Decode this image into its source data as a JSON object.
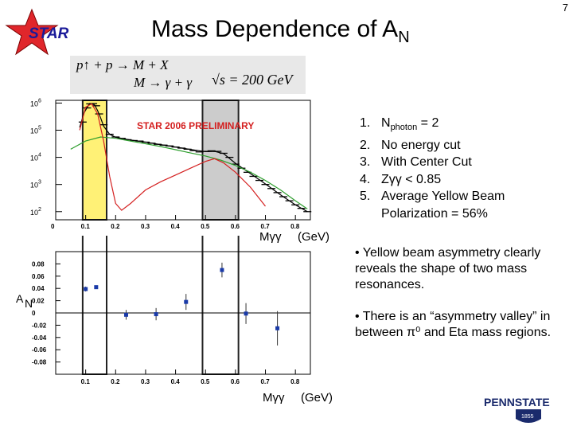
{
  "slide": {
    "number": "7",
    "logo_text": "STAR",
    "title_main": "Mass Dependence of A",
    "title_sub": "N"
  },
  "formula": {
    "line1": "p↑ + p → M + X",
    "line2": "M → γ + γ",
    "sqrt": "√s = 200 GeV"
  },
  "conditions": [
    {
      "num": "1.",
      "main": "N",
      "sub": "photon",
      "rest": " = 2"
    },
    {
      "num": "2.",
      "main": "No energy cut",
      "sub": "",
      "rest": ""
    },
    {
      "num": "3.",
      "main": "With Center Cut",
      "sub": "",
      "rest": ""
    },
    {
      "num": "4.",
      "main": "Zγγ < 0.85",
      "sub": "",
      "rest": ""
    },
    {
      "num": "5.",
      "main": "Average Yellow Beam",
      "sub": "",
      "rest": ""
    },
    {
      "num": "",
      "main": "Polarization = 56%",
      "sub": "",
      "rest": ""
    }
  ],
  "bullets": [
    "• Yellow beam asymmetry clearly reveals the shape of two mass resonances.",
    "• There is an “asymmetry valley” in between π⁰ and Eta mass regions."
  ],
  "pennstate": {
    "text": "PENNSTATE",
    "year": "1855"
  },
  "colors": {
    "yellow_band": "#fff176",
    "gray_band": "#cccccc",
    "points": "#1a3aa8",
    "fit_green": "#2e9e2e",
    "fit_red": "#d42020",
    "star_red": "#e0262b"
  },
  "chart_data": [
    {
      "type": "line",
      "annotation": "STAR 2006 PRELIMINARY",
      "xlabel": "Mγγ",
      "xlabel_unit": "(GeV)",
      "ylabel": "",
      "x_ticks": [
        "0",
        "0.1",
        "0.2",
        "0.3",
        "0.4",
        "0.5",
        "0.6",
        "0.7",
        "0.8"
      ],
      "y_ticks": [
        {
          "base": "10",
          "exp": "6",
          "v": 6
        },
        {
          "base": "10",
          "exp": "5",
          "v": 5
        },
        {
          "base": "10",
          "exp": "4",
          "v": 4
        },
        {
          "base": "10",
          "exp": "3",
          "v": 3
        },
        {
          "base": "10",
          "exp": "2",
          "v": 2
        }
      ],
      "xlim": [
        0,
        0.85
      ],
      "ylim_log10": [
        1.7,
        6.1
      ],
      "yscale": "log",
      "bands": [
        {
          "from": 0.09,
          "to": 0.17,
          "color": "yellow"
        },
        {
          "from": 0.49,
          "to": 0.61,
          "color": "gray"
        }
      ],
      "series": [
        {
          "style": "data",
          "x": [
            0.09,
            0.105,
            0.115,
            0.125,
            0.135,
            0.145,
            0.16,
            0.18,
            0.2,
            0.22,
            0.24,
            0.26,
            0.28,
            0.3,
            0.32,
            0.34,
            0.36,
            0.38,
            0.4,
            0.42,
            0.44,
            0.46,
            0.48,
            0.5,
            0.52,
            0.54,
            0.56,
            0.58,
            0.6,
            0.62,
            0.64,
            0.66,
            0.68,
            0.7,
            0.72,
            0.74,
            0.76,
            0.78,
            0.8,
            0.82,
            0.84
          ],
          "log10y": [
            5.3,
            5.82,
            5.97,
            5.98,
            5.9,
            5.6,
            5.2,
            4.85,
            4.75,
            4.7,
            4.65,
            4.62,
            4.6,
            4.56,
            4.52,
            4.48,
            4.45,
            4.42,
            4.38,
            4.34,
            4.3,
            4.25,
            4.2,
            4.22,
            4.24,
            4.22,
            4.15,
            4.0,
            3.75,
            3.6,
            3.45,
            3.3,
            3.15,
            3.0,
            2.85,
            2.7,
            2.55,
            2.4,
            2.25,
            2.12,
            2.0
          ]
        },
        {
          "style": "fit-black",
          "x": [
            0.08,
            0.095,
            0.11,
            0.12,
            0.13,
            0.14,
            0.15,
            0.16,
            0.18,
            0.2,
            0.25,
            0.3,
            0.35,
            0.4,
            0.45,
            0.5,
            0.53,
            0.56,
            0.6,
            0.65,
            0.7,
            0.75,
            0.8,
            0.84
          ],
          "log10y": [
            5.1,
            5.65,
            5.93,
            5.98,
            5.93,
            5.72,
            5.45,
            5.15,
            4.85,
            4.74,
            4.64,
            4.56,
            4.47,
            4.38,
            4.29,
            4.21,
            4.22,
            4.14,
            3.78,
            3.4,
            3.02,
            2.62,
            2.25,
            2.0
          ]
        },
        {
          "style": "fit-green",
          "x": [
            0.05,
            0.1,
            0.15,
            0.2,
            0.25,
            0.3,
            0.35,
            0.4,
            0.45,
            0.5,
            0.55,
            0.6,
            0.65,
            0.7,
            0.75,
            0.8,
            0.84
          ],
          "log10y": [
            4.3,
            4.6,
            4.75,
            4.7,
            4.6,
            4.5,
            4.4,
            4.28,
            4.16,
            4.05,
            3.9,
            3.7,
            3.45,
            3.15,
            2.8,
            2.4,
            2.1
          ]
        },
        {
          "style": "fit-red",
          "x": [
            0.08,
            0.1,
            0.12,
            0.14,
            0.16,
            0.18,
            0.2,
            0.22,
            0.25,
            0.3,
            0.35,
            0.4,
            0.45,
            0.5,
            0.53,
            0.56,
            0.6,
            0.65,
            0.7
          ],
          "log10y": [
            5.0,
            5.85,
            5.97,
            5.6,
            4.6,
            3.3,
            2.3,
            2.05,
            2.3,
            2.8,
            3.1,
            3.35,
            3.6,
            3.85,
            3.95,
            3.8,
            3.45,
            2.9,
            2.2
          ]
        }
      ]
    },
    {
      "type": "scatter",
      "xlabel": "Mγγ",
      "xlabel_unit": "(GeV)",
      "ylabel_main": "A",
      "ylabel_sub": "N",
      "x_ticks": [
        "0.1",
        "0.2",
        "0.3",
        "0.4",
        "0.5",
        "0.6",
        "0.7",
        "0.8"
      ],
      "y_ticks": [
        "0.08",
        "0.06",
        "0.04",
        "0.02",
        "0",
        "-0.02",
        "-0.04",
        "-0.06",
        "-0.08"
      ],
      "xlim": [
        0,
        0.85
      ],
      "ylim": [
        -0.1,
        0.1
      ],
      "points": [
        {
          "x": 0.1,
          "y": 0.039,
          "err": 0.004
        },
        {
          "x": 0.135,
          "y": 0.042,
          "err": 0.003
        },
        {
          "x": 0.235,
          "y": -0.003,
          "err": 0.008
        },
        {
          "x": 0.335,
          "y": -0.002,
          "err": 0.01
        },
        {
          "x": 0.435,
          "y": 0.018,
          "err": 0.013
        },
        {
          "x": 0.555,
          "y": 0.07,
          "err": 0.012
        },
        {
          "x": 0.635,
          "y": -0.001,
          "err": 0.017
        },
        {
          "x": 0.74,
          "y": -0.025,
          "err": 0.028
        }
      ]
    }
  ]
}
